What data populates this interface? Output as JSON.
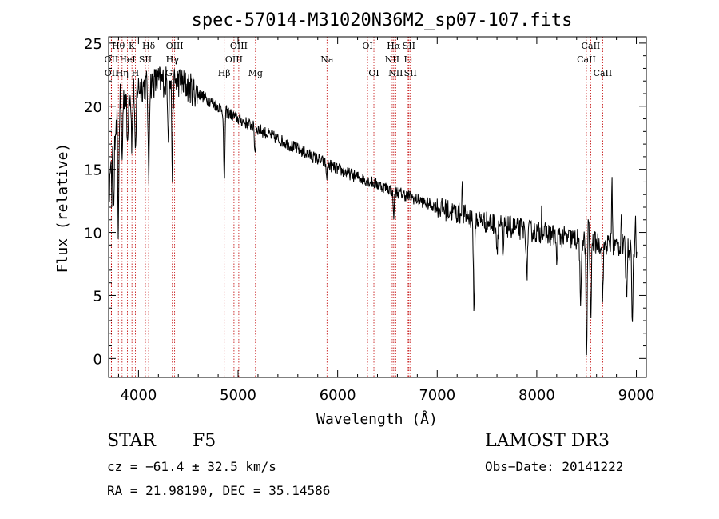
{
  "chart_data": {
    "type": "line",
    "title": "spec-57014-M31020N36M2_sp07-107.fits",
    "xlabel": "Wavelength (Å)",
    "ylabel": "Flux (relative)",
    "xlim": [
      3700,
      9100
    ],
    "ylim": [
      -1.5,
      25.5
    ],
    "x_ticks": [
      4000,
      5000,
      6000,
      7000,
      8000,
      9000
    ],
    "y_ticks": [
      0,
      5,
      10,
      15,
      20,
      25
    ],
    "series": [
      {
        "name": "spectrum",
        "continuum": [
          [
            3700,
            12.0
          ],
          [
            3730,
            18.0
          ],
          [
            3800,
            20.5
          ],
          [
            3900,
            21.0
          ],
          [
            4000,
            21.5
          ],
          [
            4200,
            22.0
          ],
          [
            4400,
            22.0
          ],
          [
            4600,
            21.0
          ],
          [
            4800,
            20.0
          ],
          [
            5000,
            19.0
          ],
          [
            5500,
            17.0
          ],
          [
            6000,
            15.0
          ],
          [
            6500,
            13.5
          ],
          [
            7000,
            12.0
          ],
          [
            7500,
            10.8
          ],
          [
            8000,
            10.0
          ],
          [
            8500,
            9.3
          ],
          [
            9000,
            8.7
          ]
        ],
        "absorption_features": [
          [
            3734,
            1.5
          ],
          [
            3750,
            7.0
          ],
          [
            3770,
            3.0
          ],
          [
            3797,
            10.0
          ],
          [
            3835,
            5.0
          ],
          [
            3889,
            4.0
          ],
          [
            3934,
            4.0
          ],
          [
            3970,
            6.0
          ],
          [
            4102,
            8.0
          ],
          [
            4300,
            4.0
          ],
          [
            4340,
            7.0
          ],
          [
            4861,
            6.0
          ],
          [
            5170,
            2.0
          ],
          [
            5890,
            1.0
          ],
          [
            6563,
            2.0
          ],
          [
            7370,
            8.0
          ],
          [
            7600,
            2.0
          ],
          [
            7660,
            3.0
          ],
          [
            7900,
            4.0
          ],
          [
            8200,
            2.0
          ],
          [
            8440,
            6.0
          ],
          [
            8500,
            9.0
          ],
          [
            8542,
            6.0
          ],
          [
            8662,
            4.0
          ],
          [
            8900,
            4.0
          ],
          [
            8960,
            6.0
          ]
        ],
        "emission_spikes": [
          [
            7250,
            2.5
          ],
          [
            8050,
            2.0
          ],
          [
            8520,
            2.0
          ],
          [
            8755,
            5.5
          ],
          [
            8850,
            3.0
          ],
          [
            8990,
            2.0
          ]
        ]
      }
    ],
    "lines": [
      {
        "label": "Hθ",
        "wave": 3798,
        "row": 0
      },
      {
        "label": "OII",
        "wave": 3727,
        "row": 1
      },
      {
        "label": "OII",
        "wave": 3729,
        "row": 2
      },
      {
        "label": "HeI",
        "wave": 3889,
        "row": 1
      },
      {
        "label": "Hη",
        "wave": 3835,
        "row": 2
      },
      {
        "label": "K",
        "wave": 3934,
        "row": 0
      },
      {
        "label": "SII",
        "wave": 4069,
        "row": 1
      },
      {
        "label": "H",
        "wave": 3968,
        "row": 2
      },
      {
        "label": "Hδ",
        "wave": 4102,
        "row": 0
      },
      {
        "label": "OIII",
        "wave": 4363,
        "row": 0
      },
      {
        "label": "Hγ",
        "wave": 4340,
        "row": 1
      },
      {
        "label": "G",
        "wave": 4305,
        "row": 2
      },
      {
        "label": "OIII",
        "wave": 5007,
        "row": 0
      },
      {
        "label": "OIII",
        "wave": 4959,
        "row": 1
      },
      {
        "label": "Hβ",
        "wave": 4861,
        "row": 2
      },
      {
        "label": "Mg",
        "wave": 5175,
        "row": 2
      },
      {
        "label": "Na",
        "wave": 5893,
        "row": 1
      },
      {
        "label": "OI",
        "wave": 6300,
        "row": 0
      },
      {
        "label": "OI",
        "wave": 6364,
        "row": 2
      },
      {
        "label": "Hα",
        "wave": 6563,
        "row": 0
      },
      {
        "label": "NII",
        "wave": 6548,
        "row": 1
      },
      {
        "label": "NII",
        "wave": 6583,
        "row": 2
      },
      {
        "label": "SII",
        "wave": 6716,
        "row": 0
      },
      {
        "label": "Li",
        "wave": 6708,
        "row": 1
      },
      {
        "label": "SII",
        "wave": 6731,
        "row": 2
      },
      {
        "label": "CaII",
        "wave": 8542,
        "row": 0
      },
      {
        "label": "CaII",
        "wave": 8498,
        "row": 1
      },
      {
        "label": "CaII",
        "wave": 8662,
        "row": 2
      }
    ]
  },
  "info": {
    "object": "STAR",
    "subclass": "F5",
    "survey": "LAMOST DR3",
    "cz": "cz = −61.4 ± 32.5 km/s",
    "obsdate": "Obs−Date: 20141222",
    "radec": "RA =  21.98190, DEC =  35.14586"
  },
  "colors": {
    "spectrum": "#000000",
    "line_markers": "#c00000",
    "axes": "#000000",
    "background": "#ffffff"
  }
}
